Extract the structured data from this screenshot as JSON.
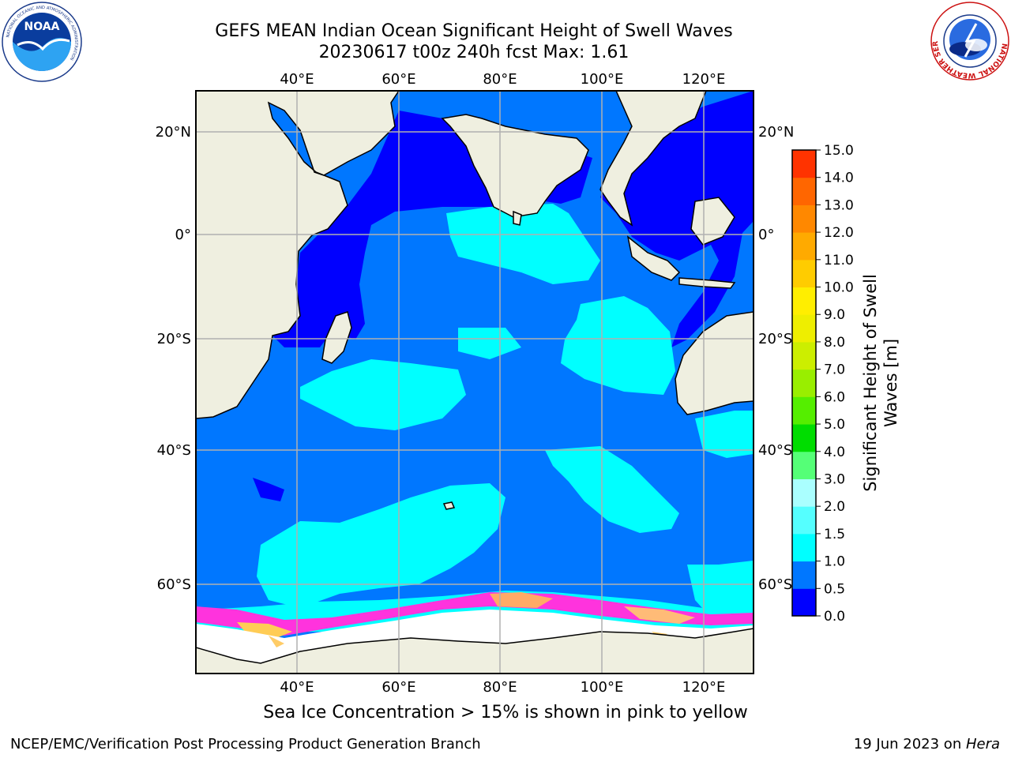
{
  "title": {
    "line1": "GEFS MEAN Indian Ocean Significant Height of Swell Waves",
    "line2": "20230617 t00z 240h fcst   Max: 1.61"
  },
  "map": {
    "lon_labels": [
      "40°E",
      "60°E",
      "80°E",
      "100°E",
      "120°E"
    ],
    "lat_labels": [
      "20°N",
      "0°",
      "20°S",
      "40°S",
      "60°S"
    ],
    "colors": {
      "land": "#efefe0",
      "sea_ice": "#ffffff",
      "coastline": "#000000",
      "gridline": "#b0b0b0"
    }
  },
  "colorbar": {
    "label_line1": "Significant Height of Swell",
    "label_line2": "Waves [m]",
    "ticks": [
      "0.0",
      "0.5",
      "1.0",
      "1.5",
      "2.0",
      "3.0",
      "4.0",
      "5.0",
      "6.0",
      "7.0",
      "8.0",
      "9.0",
      "10.0",
      "11.0",
      "12.0",
      "13.0",
      "14.0",
      "15.0"
    ],
    "colors": [
      "#0000ff",
      "#0077ff",
      "#00ffff",
      "#55ffff",
      "#aaffff",
      "#55ff77",
      "#00dd00",
      "#55ee00",
      "#99ee00",
      "#ccee00",
      "#eeee00",
      "#ffee00",
      "#ffcc00",
      "#ffaa00",
      "#ff8800",
      "#ff6600",
      "#ff3300",
      "#ff0000"
    ]
  },
  "caption": "Sea Ice Concentration > 15% is shown in pink to yellow",
  "footer": {
    "left": "NCEP/EMC/Verification Post Processing Product Generation Branch",
    "right_date": "19 Jun 2023 on ",
    "right_machine": "Hera"
  },
  "logos": {
    "noaa": "NOAA",
    "noaa_ring": "NATIONAL OCEANIC AND ATMOSPHERIC ADMINISTRATION",
    "noaa_ring_bottom": "U.S. DEPARTMENT OF COMMERCE",
    "nws_ring": "NATIONAL WEATHER SERVICE"
  }
}
